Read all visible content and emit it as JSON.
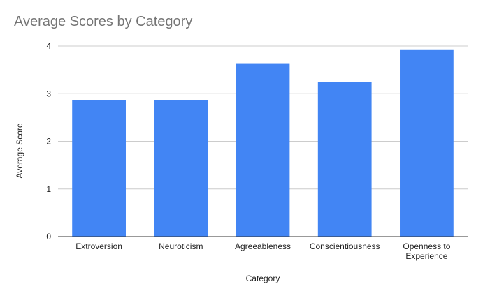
{
  "chart_data": {
    "type": "bar",
    "title": "Average Scores by Category",
    "xlabel": "Category",
    "ylabel": "Average Score",
    "categories": [
      "Extroversion",
      "Neuroticism",
      "Agreeableness",
      "Conscientiousness",
      "Openness to Experience"
    ],
    "category_lines": [
      [
        "Extroversion"
      ],
      [
        "Neuroticism"
      ],
      [
        "Agreeableness"
      ],
      [
        "Conscientiousness"
      ],
      [
        "Openness to",
        "Experience"
      ]
    ],
    "values": [
      2.86,
      2.86,
      3.64,
      3.24,
      3.93
    ],
    "ylim": [
      0,
      4
    ],
    "yticks": [
      0,
      1,
      2,
      3,
      4
    ],
    "grid": true,
    "legend": "none",
    "bar_color": "#4285f4"
  }
}
